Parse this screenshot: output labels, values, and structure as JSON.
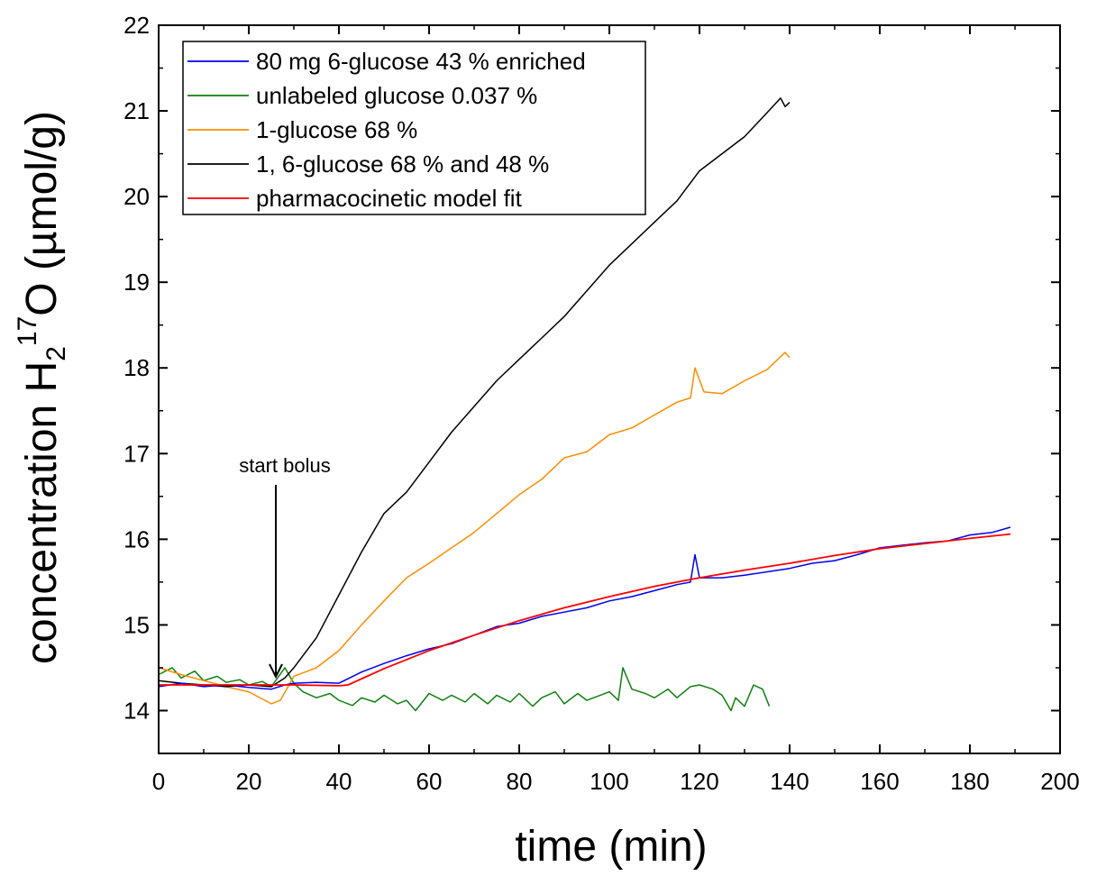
{
  "chart_data": {
    "type": "line",
    "title": "",
    "xlabel": "time (min)",
    "ylabel": {
      "prefix": "concentration H",
      "sub": "2",
      "sup": "17",
      "suffix": "O (µmol/g)"
    },
    "xlim": [
      0,
      200
    ],
    "ylim": [
      13.5,
      22
    ],
    "xticks": [
      0,
      20,
      40,
      60,
      80,
      100,
      120,
      140,
      160,
      180,
      200
    ],
    "yticks": [
      14,
      15,
      16,
      17,
      18,
      19,
      20,
      21,
      22
    ],
    "grid": false,
    "legend_position": "top-left",
    "series": [
      {
        "name": "80 mg 6-glucose 43 % enriched",
        "color": "#0000ee",
        "x": [
          0,
          5,
          10,
          15,
          20,
          25,
          28,
          30,
          35,
          40,
          45,
          50,
          55,
          60,
          65,
          70,
          75,
          80,
          85,
          90,
          95,
          100,
          105,
          110,
          115,
          118,
          119,
          120,
          125,
          130,
          135,
          140,
          145,
          150,
          155,
          160,
          165,
          170,
          175,
          180,
          185,
          189
        ],
        "y": [
          14.28,
          14.32,
          14.28,
          14.3,
          14.27,
          14.25,
          14.3,
          14.32,
          14.33,
          14.32,
          14.45,
          14.55,
          14.64,
          14.72,
          14.78,
          14.88,
          14.98,
          15.02,
          15.1,
          15.15,
          15.2,
          15.28,
          15.33,
          15.4,
          15.47,
          15.5,
          15.82,
          15.55,
          15.55,
          15.58,
          15.62,
          15.66,
          15.72,
          15.75,
          15.82,
          15.9,
          15.93,
          15.96,
          15.98,
          16.05,
          16.08,
          16.14
        ]
      },
      {
        "name": "unlabeled glucose 0.037 %",
        "color": "#108010",
        "x": [
          0,
          3,
          5,
          8,
          10,
          13,
          15,
          18,
          20,
          23,
          25,
          28,
          30,
          32,
          35,
          38,
          40,
          43,
          45,
          48,
          50,
          53,
          55,
          57,
          60,
          63,
          65,
          68,
          70,
          73,
          75,
          78,
          80,
          83,
          85,
          88,
          90,
          93,
          95,
          98,
          100,
          102,
          103,
          105,
          108,
          110,
          113,
          115,
          118,
          120,
          123,
          125,
          127,
          128,
          130,
          132,
          134,
          135.5
        ],
        "y": [
          14.42,
          14.5,
          14.38,
          14.46,
          14.35,
          14.4,
          14.33,
          14.36,
          14.3,
          14.34,
          14.28,
          14.5,
          14.32,
          14.22,
          14.15,
          14.2,
          14.12,
          14.06,
          14.15,
          14.1,
          14.18,
          14.08,
          14.12,
          14.0,
          14.2,
          14.12,
          14.18,
          14.1,
          14.2,
          14.08,
          14.18,
          14.1,
          14.2,
          14.05,
          14.15,
          14.22,
          14.08,
          14.2,
          14.12,
          14.18,
          14.22,
          14.12,
          14.5,
          14.25,
          14.2,
          14.15,
          14.25,
          14.15,
          14.28,
          14.3,
          14.25,
          14.18,
          14.0,
          14.15,
          14.05,
          14.3,
          14.25,
          14.05
        ]
      },
      {
        "name": "1-glucose 68 %",
        "color": "#ff8c00",
        "x": [
          0,
          5,
          10,
          15,
          20,
          25,
          27,
          30,
          35,
          40,
          45,
          50,
          55,
          60,
          65,
          70,
          75,
          80,
          85,
          90,
          95,
          100,
          105,
          110,
          115,
          118,
          119,
          121,
          125,
          130,
          135,
          139,
          140
        ],
        "y": [
          14.5,
          14.42,
          14.35,
          14.28,
          14.22,
          14.08,
          14.12,
          14.4,
          14.5,
          14.7,
          15.0,
          15.28,
          15.55,
          15.72,
          15.9,
          16.08,
          16.3,
          16.52,
          16.7,
          16.95,
          17.02,
          17.22,
          17.3,
          17.45,
          17.6,
          17.65,
          18.0,
          17.72,
          17.7,
          17.85,
          17.98,
          18.18,
          18.12
        ]
      },
      {
        "name": "1, 6-glucose 68 % and 48 %",
        "color": "#000000",
        "x": [
          0,
          5,
          10,
          15,
          20,
          25,
          28,
          30,
          35,
          40,
          45,
          50,
          55,
          60,
          65,
          70,
          75,
          80,
          85,
          90,
          95,
          100,
          105,
          110,
          115,
          120,
          125,
          130,
          135,
          138,
          139,
          140
        ],
        "y": [
          14.35,
          14.32,
          14.3,
          14.28,
          14.3,
          14.28,
          14.38,
          14.5,
          14.85,
          15.35,
          15.85,
          16.3,
          16.55,
          16.9,
          17.25,
          17.55,
          17.85,
          18.1,
          18.35,
          18.6,
          18.9,
          19.2,
          19.45,
          19.7,
          19.95,
          20.3,
          20.5,
          20.7,
          20.98,
          21.15,
          21.05,
          21.1
        ]
      },
      {
        "name": "pharmacocinetic model fit",
        "color": "#ff0000",
        "x": [
          0,
          10,
          20,
          30,
          40,
          42,
          50,
          60,
          70,
          80,
          90,
          100,
          110,
          120,
          130,
          140,
          150,
          160,
          170,
          180,
          189
        ],
        "y": [
          14.3,
          14.3,
          14.3,
          14.3,
          14.29,
          14.3,
          14.49,
          14.7,
          14.88,
          15.05,
          15.2,
          15.33,
          15.45,
          15.55,
          15.64,
          15.72,
          15.81,
          15.89,
          15.95,
          16.01,
          16.06
        ]
      }
    ],
    "annotations": [
      {
        "text": "start bolus",
        "x": 26,
        "y": 14.5,
        "type": "arrow"
      }
    ]
  }
}
